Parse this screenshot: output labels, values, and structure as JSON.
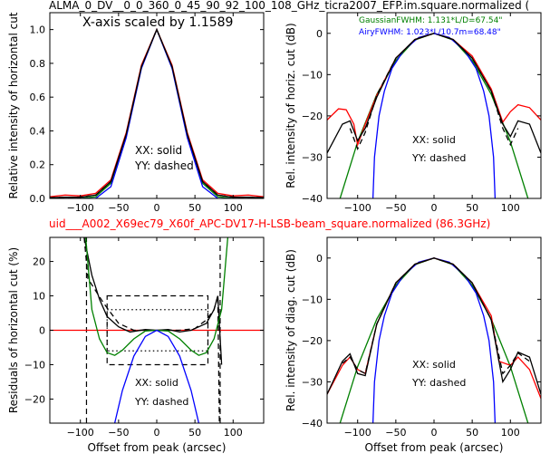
{
  "header": {
    "title_top": "ALMA_0_DV__0_0_360_0_45_90_92_100_108_GHz_ticra2007_EFP.im.square.normalized (",
    "title_mid": "uid___A002_X69ec79_X60f_APC-DV17-H-LSB-beam_square.normalized (86.3GHz)",
    "title_mid_color": "#ff0000"
  },
  "colors": {
    "gaussian": "#008000",
    "airy": "#0000ff",
    "measured": "#ff0000",
    "model": "#000000",
    "reference": "#ff0000"
  },
  "chart_data": [
    {
      "id": "p1",
      "type": "line",
      "xlabel": "",
      "ylabel": "Relative intensity of horizontal cut",
      "xlim": [
        -140,
        140
      ],
      "ylim": [
        0.0,
        1.1
      ],
      "xticks": [
        -100,
        -50,
        0,
        50,
        100
      ],
      "yticks": [
        0.0,
        0.2,
        0.4,
        0.6,
        0.8,
        1.0
      ],
      "ytick_labels": [
        "0.0",
        "0.2",
        "0.4",
        "0.6",
        "0.8",
        "1.0"
      ],
      "annotations": [
        "X-axis scaled by 1.1589",
        "XX: solid",
        "YY: dashed"
      ],
      "series": [
        {
          "role": "gaussian",
          "fwhm": 67.54,
          "x": [
            -140,
            -100,
            -80,
            -60,
            -40,
            -20,
            0,
            20,
            40,
            60,
            80,
            100,
            140
          ],
          "y": [
            0.0,
            0.0,
            0.01,
            0.09,
            0.37,
            0.78,
            1.0,
            0.78,
            0.37,
            0.09,
            0.01,
            0.0,
            0.0
          ]
        },
        {
          "role": "airy",
          "fwhm": 68.48,
          "x": [
            -140,
            -100,
            -80,
            -60,
            -40,
            -20,
            0,
            20,
            40,
            60,
            80,
            100,
            140
          ],
          "y": [
            0.0,
            0.0,
            0.0,
            0.07,
            0.36,
            0.77,
            1.0,
            0.77,
            0.36,
            0.07,
            0.0,
            0.0,
            0.0
          ]
        },
        {
          "role": "measured",
          "style": "solid",
          "x": [
            -140,
            -120,
            -100,
            -80,
            -60,
            -40,
            -20,
            0,
            20,
            40,
            60,
            80,
            100,
            120,
            140
          ],
          "y": [
            0.01,
            0.02,
            0.015,
            0.03,
            0.11,
            0.39,
            0.79,
            1.0,
            0.79,
            0.39,
            0.11,
            0.03,
            0.015,
            0.02,
            0.01
          ]
        },
        {
          "role": "model",
          "style": "solid",
          "x": [
            -140,
            -120,
            -100,
            -80,
            -60,
            -40,
            -20,
            0,
            20,
            40,
            60,
            80,
            100,
            120,
            140
          ],
          "y": [
            0.005,
            0.007,
            0.007,
            0.02,
            0.1,
            0.38,
            0.78,
            1.0,
            0.78,
            0.38,
            0.1,
            0.02,
            0.007,
            0.007,
            0.005
          ]
        },
        {
          "role": "model",
          "style": "dashed",
          "x": [
            -140,
            -100,
            -80,
            -60,
            -40,
            -20,
            0,
            20,
            40,
            60,
            80,
            100,
            140
          ],
          "y": [
            0.005,
            0.008,
            0.02,
            0.1,
            0.38,
            0.78,
            1.0,
            0.78,
            0.38,
            0.1,
            0.02,
            0.008,
            0.005
          ]
        }
      ]
    },
    {
      "id": "p2",
      "type": "line",
      "xlabel": "",
      "ylabel": "Rel. intensity of horiz. cut (dB)",
      "xlim": [
        -140,
        140
      ],
      "ylim": [
        -40,
        5
      ],
      "xticks": [
        -100,
        -50,
        0,
        50,
        100
      ],
      "yticks": [
        -40,
        -30,
        -20,
        -10,
        0
      ],
      "ytick_labels": [
        "−40",
        "−30",
        "−20",
        "−10",
        "0"
      ],
      "annotations": [
        "GaussianFWHM: 1.131*L/D=67.54\"",
        "AiryFWHM: 1.023*L/10.7m=68.48\"",
        "XX: solid",
        "YY: dashed"
      ],
      "series": [
        {
          "role": "gaussian",
          "x": [
            -123,
            -100,
            -75,
            -50,
            -25,
            0,
            25,
            50,
            75,
            100,
            123
          ],
          "y": [
            -40,
            -26.3,
            -14.8,
            -6.6,
            -1.6,
            0,
            -1.6,
            -6.6,
            -14.8,
            -26.3,
            -40
          ]
        },
        {
          "role": "airy",
          "x": [
            -80,
            -78,
            -72,
            -65,
            -55,
            -40,
            -20,
            0,
            20,
            40,
            55,
            65,
            72,
            78,
            80
          ],
          "y": [
            -40,
            -30,
            -20,
            -14,
            -8.5,
            -4.2,
            -1.0,
            0,
            -1.0,
            -4.2,
            -8.5,
            -14,
            -20,
            -30,
            -40
          ]
        },
        {
          "role": "measured",
          "style": "solid",
          "x": [
            -140,
            -125,
            -115,
            -105,
            -100,
            -90,
            -75,
            -50,
            -25,
            0,
            25,
            50,
            75,
            90,
            100,
            110,
            125,
            140
          ],
          "y": [
            -21,
            -18.3,
            -18.5,
            -22,
            -27,
            -22,
            -15,
            -6,
            -1.5,
            0,
            -1.5,
            -5.5,
            -13.5,
            -21.5,
            -19,
            -17.3,
            -18,
            -21
          ]
        },
        {
          "role": "model",
          "style": "solid",
          "x": [
            -140,
            -120,
            -110,
            -100,
            -90,
            -75,
            -50,
            -25,
            0,
            25,
            50,
            75,
            90,
            100,
            110,
            125,
            140
          ],
          "y": [
            -29,
            -22,
            -21.2,
            -26,
            -23,
            -15.5,
            -6,
            -1.5,
            0,
            -1.5,
            -6,
            -14,
            -22,
            -25,
            -21.2,
            -22,
            -29
          ]
        },
        {
          "role": "model",
          "style": "dashed",
          "x": [
            -110,
            -100,
            -90,
            -75,
            -50,
            -25,
            0,
            25,
            50,
            75,
            90,
            100,
            110
          ],
          "y": [
            -23,
            -28,
            -24,
            -15,
            -6,
            -1.5,
            0,
            -1.5,
            -6,
            -14,
            -23,
            -27,
            -23
          ]
        }
      ]
    },
    {
      "id": "p3",
      "type": "line",
      "xlabel": "Offset from peak (arcsec)",
      "ylabel": "Residuals of horizontal cut (%)",
      "xlim": [
        -140,
        140
      ],
      "ylim": [
        -27,
        27
      ],
      "xticks": [
        -100,
        -50,
        0,
        50,
        100
      ],
      "yticks": [
        -20,
        -10,
        0,
        10,
        20
      ],
      "ytick_labels": [
        "−20",
        "−10",
        "0",
        "10",
        "20"
      ],
      "annotations": [
        "XX: solid",
        "YY: dashed"
      ],
      "series": [
        {
          "role": "reference",
          "x": [
            -140,
            140
          ],
          "y": [
            0,
            0
          ]
        },
        {
          "role": "model",
          "style": "solid",
          "x": [
            -95,
            -85,
            -75,
            -65,
            -50,
            -35,
            -15,
            0,
            15,
            30,
            45,
            55,
            65,
            75,
            80,
            85
          ],
          "y": [
            27,
            16,
            9,
            4,
            1,
            -0.5,
            0.2,
            0,
            0.2,
            -0.5,
            0,
            1,
            2,
            6,
            10,
            -10
          ]
        },
        {
          "role": "model",
          "style": "dashed",
          "x": [
            -95,
            -90,
            -70,
            -50,
            -30,
            0,
            30,
            50,
            65,
            75,
            80,
            82
          ],
          "y": [
            27,
            15,
            8,
            2,
            0,
            0,
            0,
            0.5,
            3,
            6,
            10,
            -27
          ]
        },
        {
          "role": "gaussian",
          "x": [
            -93,
            -85,
            -75,
            -65,
            -55,
            -45,
            -30,
            -15,
            0,
            15,
            30,
            45,
            55,
            65,
            75,
            85,
            93
          ],
          "y": [
            27,
            6,
            -2.5,
            -6.5,
            -7.3,
            -5.8,
            -2.5,
            -0.2,
            0,
            -0.2,
            -2.5,
            -5.8,
            -7.3,
            -6.5,
            -2.5,
            6,
            27
          ]
        },
        {
          "role": "airy",
          "x": [
            -55,
            -45,
            -30,
            -15,
            0,
            15,
            30,
            45,
            55
          ],
          "y": [
            -27,
            -17.5,
            -7.5,
            -1.8,
            0,
            -1.8,
            -7.5,
            -17.5,
            -27
          ]
        }
      ],
      "boxes": [
        {
          "style": "dashed",
          "x": [
            -65,
            67
          ],
          "y": [
            -10,
            10
          ]
        },
        {
          "style": "dotted",
          "x": [
            -65,
            67
          ],
          "y": [
            -6,
            6
          ]
        }
      ],
      "vlines": [
        {
          "style": "dashed",
          "x": -92,
          "y": [
            -27,
            27
          ]
        },
        {
          "style": "dashed",
          "x": 83,
          "y": [
            -27,
            27
          ]
        }
      ]
    },
    {
      "id": "p4",
      "type": "line",
      "xlabel": "Offset from peak (arcsec)",
      "ylabel": "Rel. intensity of diag. cut (dB)",
      "xlim": [
        -140,
        140
      ],
      "ylim": [
        -40,
        5
      ],
      "xticks": [
        -100,
        -50,
        0,
        50,
        100
      ],
      "yticks": [
        -40,
        -30,
        -20,
        -10,
        0
      ],
      "ytick_labels": [
        "−40",
        "−30",
        "−20",
        "−10",
        "0"
      ],
      "annotations": [
        "XX: solid",
        "YY: dashed"
      ],
      "series": [
        {
          "role": "gaussian",
          "x": [
            -123,
            -100,
            -75,
            -50,
            -25,
            0,
            25,
            50,
            75,
            100,
            123
          ],
          "y": [
            -40,
            -26.3,
            -14.8,
            -6.6,
            -1.6,
            0,
            -1.6,
            -6.6,
            -14.8,
            -26.3,
            -40
          ]
        },
        {
          "role": "airy",
          "x": [
            -80,
            -78,
            -72,
            -65,
            -55,
            -40,
            -20,
            0,
            20,
            40,
            55,
            65,
            72,
            78,
            80
          ],
          "y": [
            -40,
            -30,
            -20,
            -14,
            -8.5,
            -4.2,
            -1.0,
            0,
            -1.0,
            -4.2,
            -8.5,
            -14,
            -20,
            -30,
            -40
          ]
        },
        {
          "role": "measured",
          "style": "solid",
          "x": [
            -140,
            -120,
            -110,
            -100,
            -90,
            -75,
            -50,
            -25,
            0,
            25,
            50,
            75,
            85,
            100,
            110,
            125,
            140
          ],
          "y": [
            -33,
            -26,
            -24,
            -27,
            -28,
            -16,
            -6,
            -1.5,
            0,
            -1.5,
            -6,
            -14,
            -25,
            -26,
            -24,
            -27,
            -34
          ]
        },
        {
          "role": "model",
          "style": "solid",
          "x": [
            -140,
            -120,
            -110,
            -100,
            -90,
            -75,
            -50,
            -25,
            0,
            25,
            50,
            75,
            90,
            100,
            110,
            125,
            140
          ],
          "y": [
            -33,
            -25,
            -23.2,
            -28,
            -28.5,
            -16,
            -6,
            -1.5,
            0,
            -1.5,
            -6,
            -15,
            -30,
            -27,
            -22.8,
            -24,
            -33
          ]
        },
        {
          "role": "model",
          "style": "dashed",
          "x": [
            -120,
            -110,
            -100,
            -90,
            -75,
            -50,
            -25,
            0,
            25,
            50,
            75,
            90,
            100,
            110,
            125
          ],
          "y": [
            -25.5,
            -24,
            -27,
            -28,
            -16,
            -6,
            -1.5,
            0,
            -1.5,
            -6,
            -15,
            -28,
            -26,
            -23,
            -25
          ]
        }
      ]
    }
  ]
}
